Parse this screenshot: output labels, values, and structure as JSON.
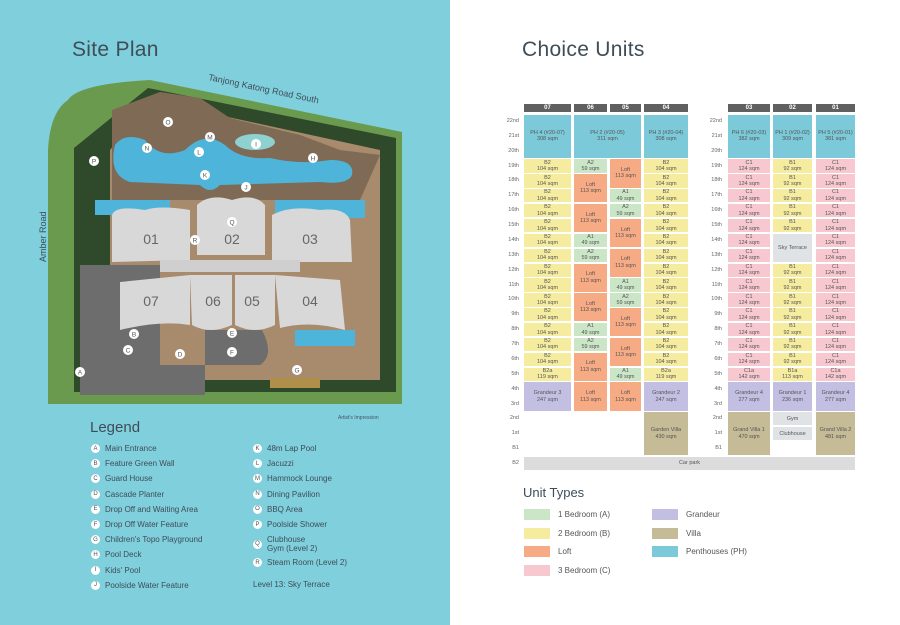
{
  "left": {
    "title": "Site Plan",
    "road_top": "Tanjong Katong Road South",
    "road_left": "Amber Road",
    "impression": "Artist's Impression",
    "blocks": [
      "01",
      "02",
      "03",
      "07",
      "06",
      "05",
      "04"
    ],
    "legend_title": "Legend",
    "legend": [
      {
        "key": "A",
        "label": "Main Entrance"
      },
      {
        "key": "B",
        "label": "Feature Green Wall"
      },
      {
        "key": "C",
        "label": "Guard House"
      },
      {
        "key": "D",
        "label": "Cascade Planter"
      },
      {
        "key": "E",
        "label": "Drop Off and Waiting Area"
      },
      {
        "key": "F",
        "label": "Drop Off Water Feature"
      },
      {
        "key": "G",
        "label": "Children's Topo Playground"
      },
      {
        "key": "H",
        "label": "Pool Deck"
      },
      {
        "key": "I",
        "label": "Kids' Pool"
      },
      {
        "key": "J",
        "label": "Poolside Water Feature"
      },
      {
        "key": "K",
        "label": "48m Lap Pool"
      },
      {
        "key": "L",
        "label": "Jacuzzi"
      },
      {
        "key": "M",
        "label": "Hammock Lounge"
      },
      {
        "key": "N",
        "label": "Dining Pavilion"
      },
      {
        "key": "O",
        "label": "BBQ Area"
      },
      {
        "key": "P",
        "label": "Poolside Shower"
      },
      {
        "key": "Q",
        "label": "Clubhouse",
        "label2": "Gym (Level 2)"
      },
      {
        "key": "R",
        "label": "Steam Room (Level 2)"
      }
    ],
    "legend_note": "Level 13: Sky Terrace"
  },
  "right": {
    "title": "Choice Units",
    "colors": {
      "A": "#cbe6c7",
      "B": "#f5ec9f",
      "L": "#f6ab85",
      "C": "#f8c8d0",
      "G": "#c3bfe2",
      "V": "#c5bb96",
      "PH": "#7ccad9",
      "S": "#dfe3e6",
      "CP": "#dcdcdc",
      "header": "#606060"
    },
    "rows": [
      "22nd",
      "21st",
      "20th",
      "19th",
      "18th",
      "17th",
      "16th",
      "15th",
      "14th",
      "13th",
      "12th",
      "11th",
      "10th",
      "9th",
      "8th",
      "7th",
      "6th",
      "5th",
      "4th",
      "3rd",
      "2nd",
      "1st",
      "B1",
      "B2"
    ],
    "columns": [
      "07",
      "06",
      "05",
      "04",
      "03",
      "02",
      "01"
    ],
    "cells": [
      {
        "col": "07",
        "from": "22nd",
        "to": "20th",
        "label": "PH 4 (#20-07)",
        "size": "308 sqm",
        "type": "PH"
      },
      {
        "col": "07",
        "from": "19th",
        "to": "6th",
        "each": true,
        "label": "B2",
        "size": "104 sqm",
        "type": "B"
      },
      {
        "col": "07",
        "from": "5th",
        "to": "5th",
        "label": "B2a",
        "size": "119 sqm",
        "type": "B"
      },
      {
        "col": "07",
        "from": "4th",
        "to": "3rd",
        "label": "Grandeur 3",
        "size": "247 sqm",
        "type": "G"
      },
      {
        "col": "06",
        "col_to": "05",
        "from": "22nd",
        "to": "20th",
        "label": "PH 2 (#20-05)",
        "size": "311 sqm",
        "type": "PH"
      },
      {
        "col": "06",
        "from": "19th",
        "to": "19th",
        "label": "A2",
        "size": "59 sqm",
        "type": "A"
      },
      {
        "col": "06",
        "from": "18th",
        "to": "17th",
        "label": "Loft",
        "size": "113 sqm",
        "type": "L"
      },
      {
        "col": "06",
        "from": "16th",
        "to": "15th",
        "label": "Loft",
        "size": "113 sqm",
        "type": "L"
      },
      {
        "col": "06",
        "from": "14th",
        "to": "14th",
        "label": "A1",
        "size": "49 sqm",
        "type": "A"
      },
      {
        "col": "06",
        "from": "13th",
        "to": "13th",
        "label": "A2",
        "size": "59 sqm",
        "type": "A"
      },
      {
        "col": "06",
        "from": "12th",
        "to": "11th",
        "label": "Loft",
        "size": "113 sqm",
        "type": "L"
      },
      {
        "col": "06",
        "from": "10th",
        "to": "9th",
        "label": "Loft",
        "size": "113 sqm",
        "type": "L"
      },
      {
        "col": "06",
        "from": "8th",
        "to": "8th",
        "label": "A1",
        "size": "49 sqm",
        "type": "A"
      },
      {
        "col": "06",
        "from": "7th",
        "to": "7th",
        "label": "A2",
        "size": "59 sqm",
        "type": "A"
      },
      {
        "col": "06",
        "from": "6th",
        "to": "5th",
        "label": "Loft",
        "size": "113 sqm",
        "type": "L"
      },
      {
        "col": "06",
        "from": "4th",
        "to": "3rd",
        "label": "Loft",
        "size": "113 sqm",
        "type": "L"
      },
      {
        "col": "05",
        "from": "19th",
        "to": "18th",
        "label": "Loft",
        "size": "113 sqm",
        "type": "L"
      },
      {
        "col": "05",
        "from": "17th",
        "to": "17th",
        "label": "A1",
        "size": "49 sqm",
        "type": "A"
      },
      {
        "col": "05",
        "from": "16th",
        "to": "16th",
        "label": "A2",
        "size": "59 sqm",
        "type": "A"
      },
      {
        "col": "05",
        "from": "15th",
        "to": "14th",
        "label": "Loft",
        "size": "113 sqm",
        "type": "L"
      },
      {
        "col": "05",
        "from": "13th",
        "to": "12th",
        "label": "Loft",
        "size": "113 sqm",
        "type": "L"
      },
      {
        "col": "05",
        "from": "11th",
        "to": "11th",
        "label": "A1",
        "size": "49 sqm",
        "type": "A"
      },
      {
        "col": "05",
        "from": "10th",
        "to": "10th",
        "label": "A2",
        "size": "59 sqm",
        "type": "A"
      },
      {
        "col": "05",
        "from": "9th",
        "to": "8th",
        "label": "Loft",
        "size": "113 sqm",
        "type": "L"
      },
      {
        "col": "05",
        "from": "7th",
        "to": "6th",
        "label": "Loft",
        "size": "113 sqm",
        "type": "L"
      },
      {
        "col": "05",
        "from": "5th",
        "to": "5th",
        "label": "A1",
        "size": "49 sqm",
        "type": "A"
      },
      {
        "col": "05",
        "from": "4th",
        "to": "3rd",
        "label": "Loft",
        "size": "113 sqm",
        "type": "L"
      },
      {
        "col": "04",
        "from": "22nd",
        "to": "20th",
        "label": "PH 3 (#20-04)",
        "size": "308 sqm",
        "type": "PH"
      },
      {
        "col": "04",
        "from": "19th",
        "to": "6th",
        "each": true,
        "label": "B2",
        "size": "104 sqm",
        "type": "B"
      },
      {
        "col": "04",
        "from": "5th",
        "to": "5th",
        "label": "B2a",
        "size": "119 sqm",
        "type": "B"
      },
      {
        "col": "04",
        "from": "4th",
        "to": "3rd",
        "label": "Grandeur 2",
        "size": "247 sqm",
        "type": "G"
      },
      {
        "col": "04",
        "from": "2nd",
        "to": "B1",
        "label": "Garden Villa",
        "size": "430 sqm",
        "type": "V"
      },
      {
        "col": "03",
        "from": "22nd",
        "to": "20th",
        "label": "PH 6 (#20-03)",
        "size": "382 sqm",
        "type": "PH"
      },
      {
        "col": "03",
        "from": "19th",
        "to": "6th",
        "each": true,
        "label": "C1",
        "size": "124 sqm",
        "type": "C"
      },
      {
        "col": "03",
        "from": "5th",
        "to": "5th",
        "label": "C1a",
        "size": "142 sqm",
        "type": "C"
      },
      {
        "col": "03",
        "from": "4th",
        "to": "3rd",
        "label": "Grandeur 4",
        "size": "277 sqm",
        "type": "G"
      },
      {
        "col": "03",
        "from": "2nd",
        "to": "B1",
        "label": "Grand Villa 1",
        "size": "470 sqm",
        "type": "V"
      },
      {
        "col": "02",
        "from": "22nd",
        "to": "20th",
        "label": "PH 1 (#20-02)",
        "size": "309 sqm",
        "type": "PH"
      },
      {
        "col": "02",
        "from": "19th",
        "to": "15th",
        "each": true,
        "label": "B1",
        "size": "92 sqm",
        "type": "B"
      },
      {
        "col": "02",
        "from": "14th",
        "to": "13th",
        "label": "Sky Terrace",
        "size": "",
        "type": "S"
      },
      {
        "col": "02",
        "from": "12th",
        "to": "6th",
        "each": true,
        "label": "B1",
        "size": "92 sqm",
        "type": "B"
      },
      {
        "col": "02",
        "from": "5th",
        "to": "5th",
        "label": "B1a",
        "size": "113 sqm",
        "type": "B"
      },
      {
        "col": "02",
        "from": "4th",
        "to": "3rd",
        "label": "Grandeur 1",
        "size": "236 sqm",
        "type": "G"
      },
      {
        "col": "02",
        "from": "2nd",
        "to": "2nd",
        "label": "Gym",
        "size": "",
        "type": "S"
      },
      {
        "col": "02",
        "from": "1st",
        "to": "1st",
        "label": "Clubhouse",
        "size": "",
        "type": "S"
      },
      {
        "col": "01",
        "from": "22nd",
        "to": "20th",
        "label": "PH 5 (#20-01)",
        "size": "381 sqm",
        "type": "PH"
      },
      {
        "col": "01",
        "from": "19th",
        "to": "6th",
        "each": true,
        "label": "C1",
        "size": "124 sqm",
        "type": "C"
      },
      {
        "col": "01",
        "from": "5th",
        "to": "5th",
        "label": "C1a",
        "size": "142 sqm",
        "type": "C"
      },
      {
        "col": "01",
        "from": "4th",
        "to": "3rd",
        "label": "Grandeur 4",
        "size": "277 sqm",
        "type": "G"
      },
      {
        "col": "01",
        "from": "2nd",
        "to": "B1",
        "label": "Grand Villa 2",
        "size": "481 sqm",
        "type": "V"
      },
      {
        "col": "07",
        "col_to": "01",
        "from": "B2",
        "to": "B2",
        "label": "Car park",
        "size": "",
        "type": "CP"
      }
    ],
    "unit_types_title": "Unit Types",
    "unit_types": [
      {
        "type": "A",
        "label": "1 Bedroom (A)"
      },
      {
        "type": "B",
        "label": "2 Bedroom (B)"
      },
      {
        "type": "L",
        "label": "Loft"
      },
      {
        "type": "C",
        "label": "3 Bedroom (C)"
      },
      {
        "type": "G",
        "label": "Grandeur"
      },
      {
        "type": "V",
        "label": "Villa"
      },
      {
        "type": "PH",
        "label": "Penthouses (PH)"
      }
    ]
  }
}
